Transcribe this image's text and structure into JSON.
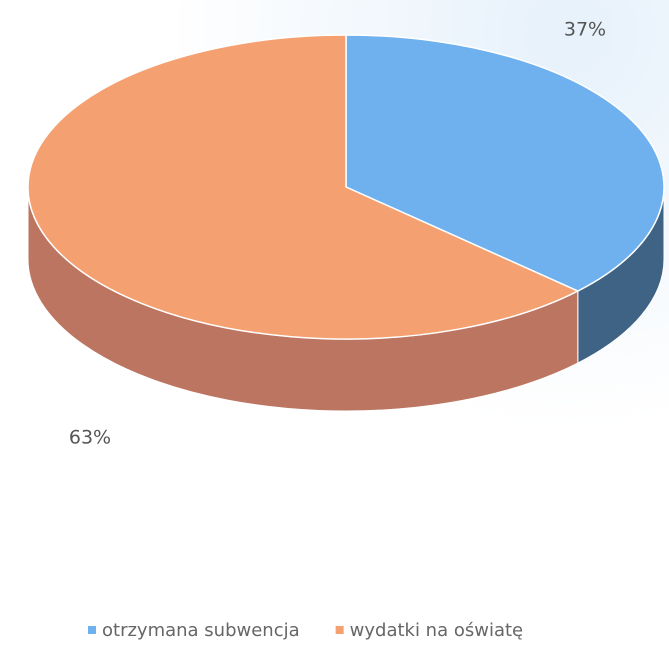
{
  "chart_data": {
    "type": "pie3d",
    "categories": [
      "otrzymana subwencja",
      "wydatki na oświatę"
    ],
    "values": [
      37,
      63
    ],
    "value_labels": [
      "37%",
      "63%"
    ],
    "colors": [
      "#6fb0ee",
      "#f4a070"
    ],
    "side_colors": [
      "#3f6384",
      "#bb7561"
    ],
    "legend": "bottom"
  }
}
